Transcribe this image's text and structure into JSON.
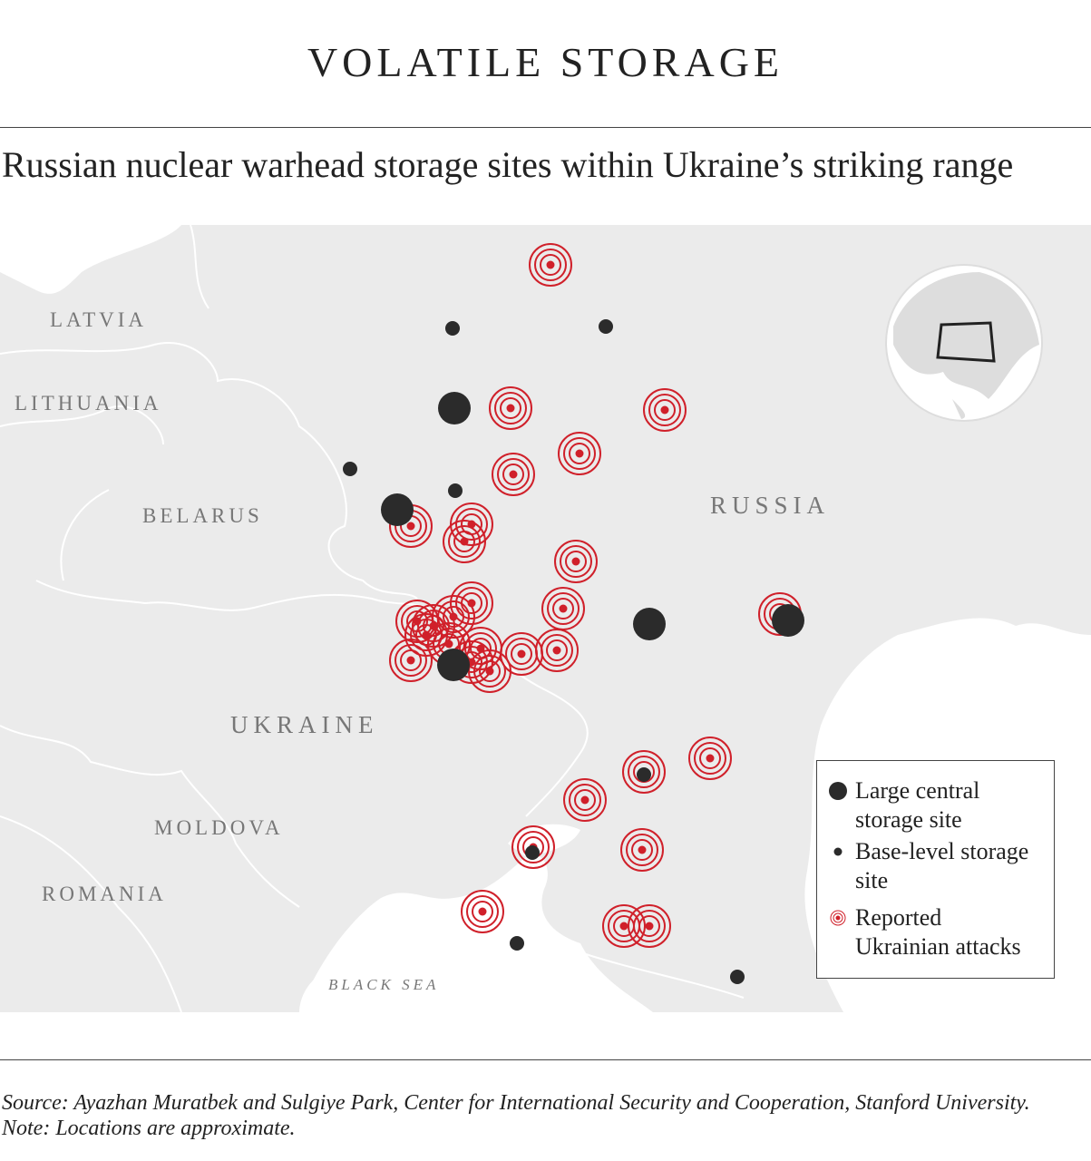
{
  "header": {
    "title": "VOLATILE STORAGE",
    "subtitle": "Russian nuclear warhead storage sites within Ukraine’s striking range"
  },
  "map": {
    "labels": [
      "LATVIA",
      "LITHUANIA",
      "BELARUS",
      "RUSSIA",
      "UKRAINE",
      "MOLDOVA",
      "ROMANIA",
      "BLACK SEA"
    ]
  },
  "legend": {
    "items": [
      "Large central storage site",
      "Base-level storage site",
      "Reported Ukrainian attacks"
    ]
  },
  "footer": {
    "source": "Source: Ayazhan Muratbek and Sulgiye Park, Center for International Security and Cooperation, Stanford University. Note: Locations are approximate."
  }
}
